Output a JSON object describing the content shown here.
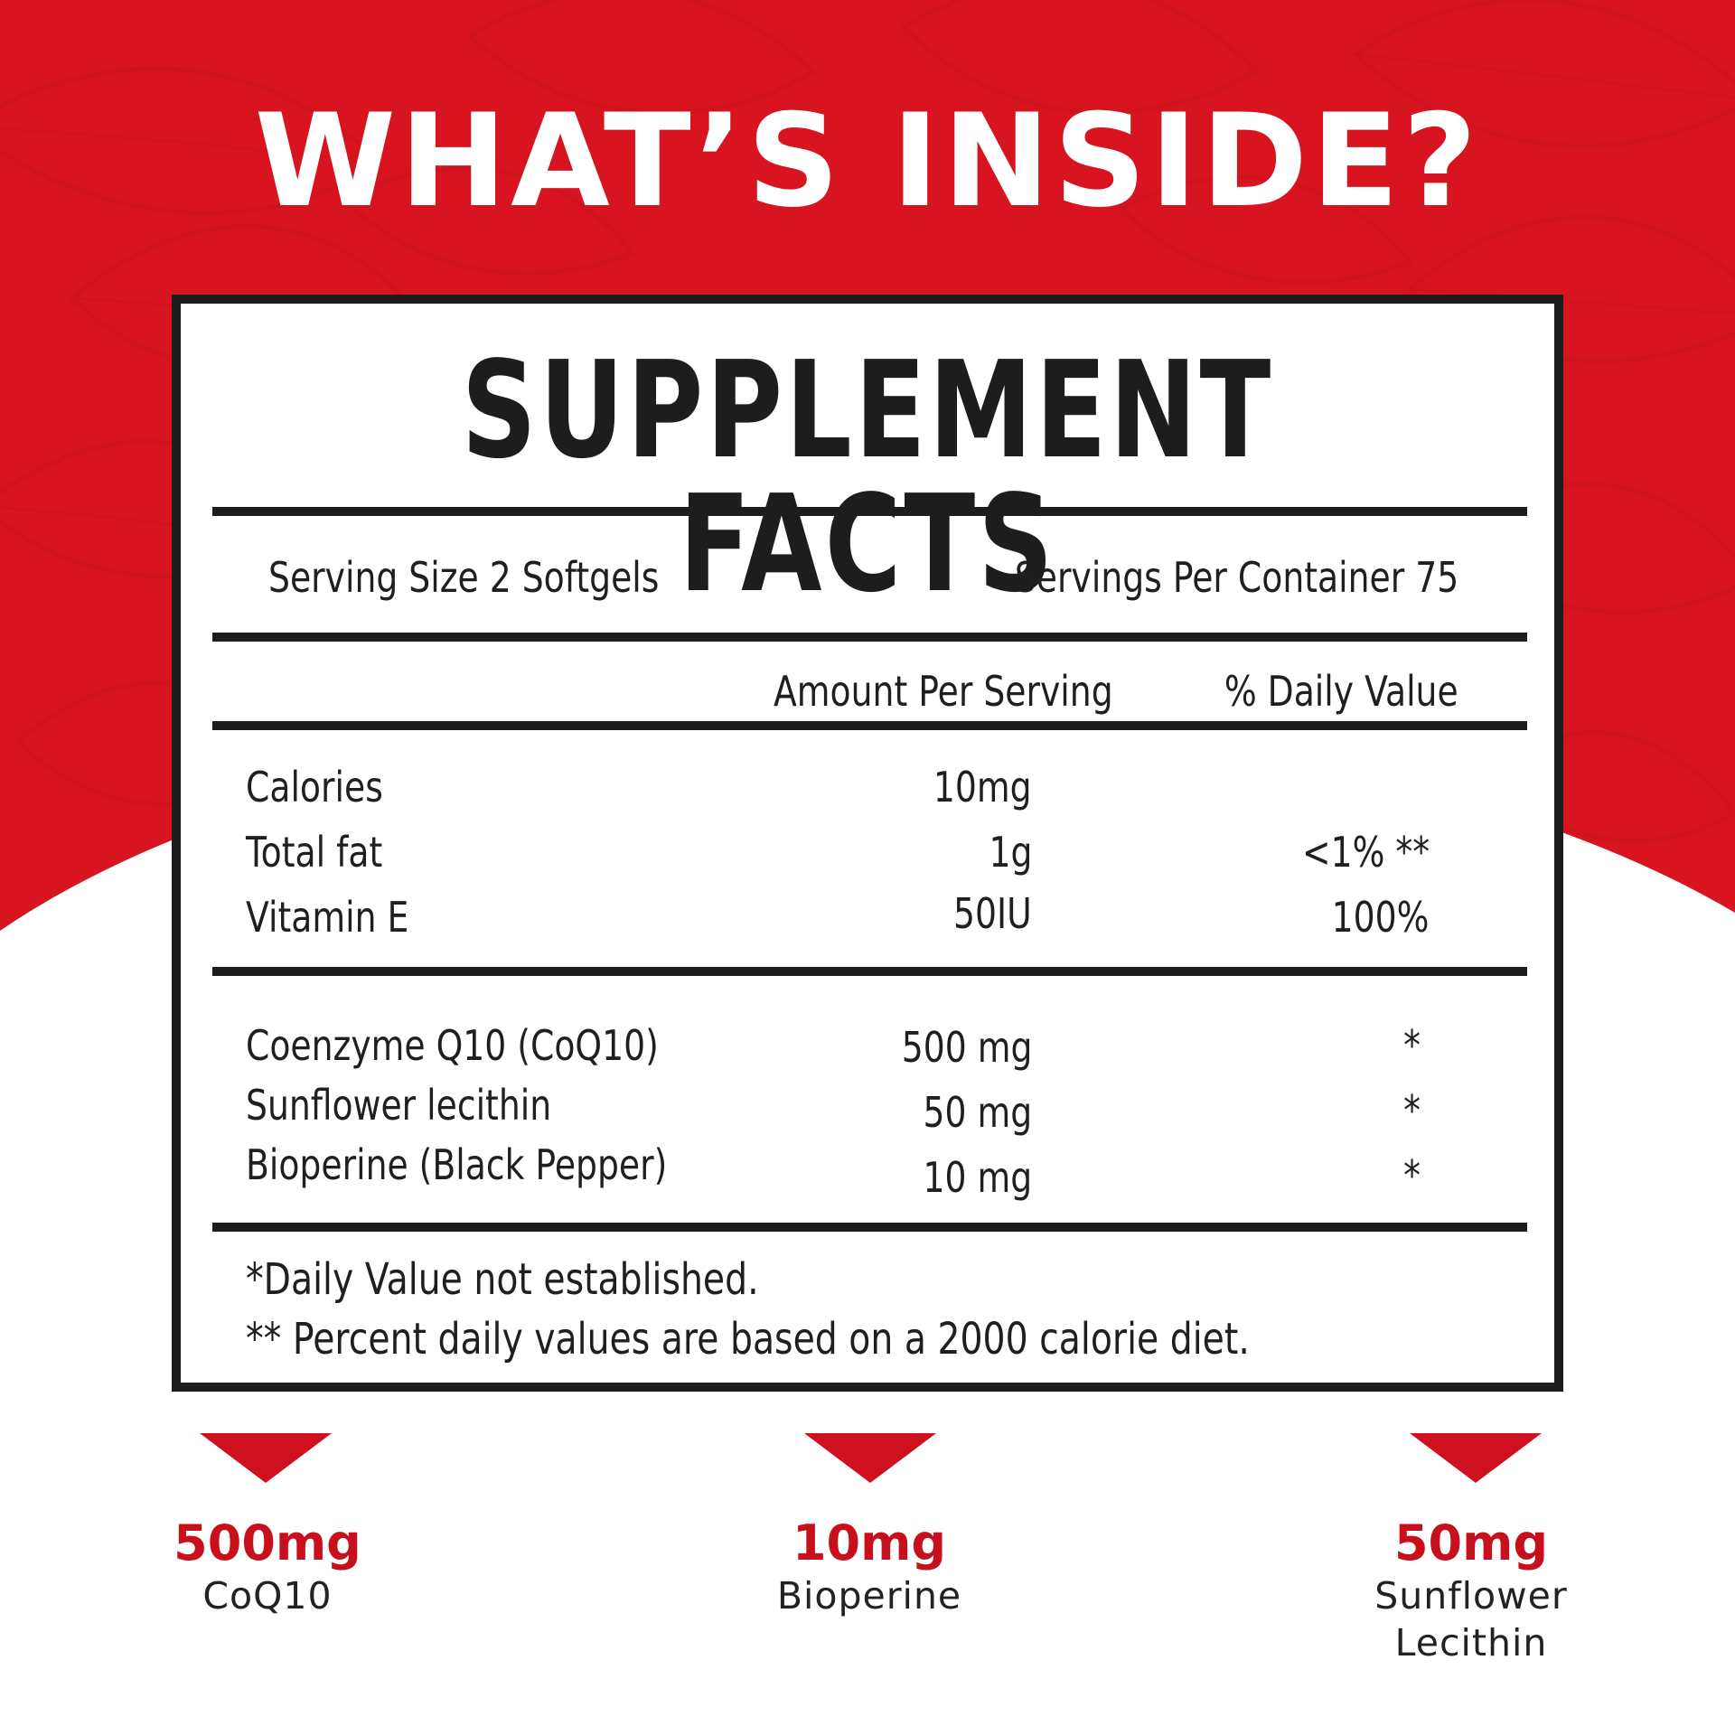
{
  "colors": {
    "brand_red": "#d7141f",
    "panel_border": "#1d1d1d",
    "accent_red_text": "#c8101d",
    "background_white": "#ffffff"
  },
  "headline": "WHAT’S INSIDE?",
  "facts": {
    "title": "SUPPLEMENT  FACTS",
    "serving_size": "Serving Size 2 Softgels",
    "servings_per_container": "Servings Per Container 75",
    "col_amount": "Amount Per Serving",
    "col_daily": "% Daily Value",
    "nutrients": [
      {
        "name": "Calories",
        "amount": "10mg",
        "daily": ""
      },
      {
        "name": "Total fat",
        "amount": "1g",
        "daily": "<1% **"
      },
      {
        "name": "Vitamin E",
        "amount": "50IU",
        "daily": "100%"
      }
    ],
    "ingredients": [
      {
        "name": "Coenzyme Q10 (CoQ10)",
        "amount": "500 mg",
        "daily": "*"
      },
      {
        "name": "Sunflower lecithin",
        "amount": "50 mg",
        "daily": "*"
      },
      {
        "name": "Bioperine (Black Pepper)",
        "amount": "10 mg",
        "daily": "*"
      }
    ],
    "footnote1": "*Daily Value not established.",
    "footnote2": "** Percent daily values are based on a 2000 calorie diet."
  },
  "highlights": [
    {
      "amount": "500mg",
      "name_line1": "CoQ10",
      "name_line2": "",
      "icon": "down-triangle-icon"
    },
    {
      "amount": "10mg",
      "name_line1": "Bioperine",
      "name_line2": "",
      "icon": "down-triangle-icon"
    },
    {
      "amount": "50mg",
      "name_line1": "Sunflower",
      "name_line2": "Lecithin",
      "icon": "down-triangle-icon"
    }
  ]
}
